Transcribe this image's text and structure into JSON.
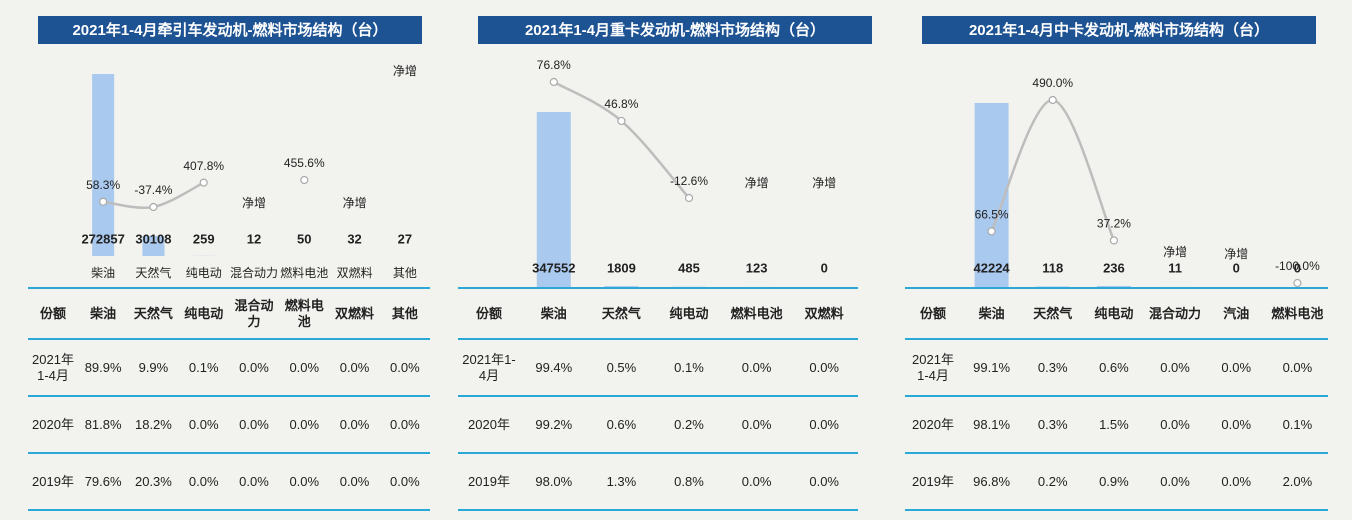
{
  "chart_data": [
    {
      "type": "bar",
      "title": "2021年1-4月牵引车发动机-燃料市场结构（台）",
      "categories": [
        "柴油",
        "天然气",
        "纯电动",
        "混合动力",
        "燃料电池",
        "双燃料",
        "其他"
      ],
      "series": [
        {
          "color": "#a9c9ef",
          "values": [
            272857,
            30108,
            259,
            12,
            50,
            32,
            27
          ]
        },
        {
          "type": "line",
          "color": "#bdbdbd",
          "values": [
            58.3,
            -37.4,
            407.8,
            null,
            455.6,
            null,
            null
          ],
          "value_labels": [
            "58.3%",
            "-37.4%",
            "407.8%",
            "净增",
            "455.6%",
            "净增",
            "净增"
          ]
        }
      ]
    },
    {
      "type": "bar",
      "title": "2021年1-4月重卡发动机-燃料市场结构（台）",
      "series": [
        {
          "color": "#a9c9ef",
          "values": [
            347552,
            1809,
            485,
            123,
            0
          ]
        },
        {
          "type": "line",
          "color": "#bdbdbd",
          "values": [
            76.8,
            46.8,
            -12.6,
            null,
            null
          ],
          "value_labels": [
            "76.8%",
            "46.8%",
            "-12.6%",
            "净增",
            "净增"
          ]
        }
      ]
    },
    {
      "type": "bar",
      "title": "2021年1-4月中卡发动机-燃料市场结构（台）",
      "series": [
        {
          "color": "#a9c9ef",
          "values": [
            42224,
            118,
            236,
            11,
            0,
            0
          ]
        },
        {
          "type": "line",
          "color": "#bdbdbd",
          "values": [
            66.5,
            490.0,
            37.2,
            null,
            null,
            -100.0
          ],
          "value_labels": [
            "66.5%",
            "490.0%",
            "37.2%",
            "净增",
            "净增",
            "-100.0%"
          ]
        }
      ]
    }
  ],
  "tables": [
    {
      "header": [
        "份额",
        "柴油",
        "天然气",
        "纯电动",
        "混合动力",
        "燃料电池",
        "双燃料",
        "其他"
      ],
      "rows": [
        [
          "2021年1-4月",
          "89.9%",
          "9.9%",
          "0.1%",
          "0.0%",
          "0.0%",
          "0.0%",
          "0.0%"
        ],
        [
          "2020年",
          "81.8%",
          "18.2%",
          "0.0%",
          "0.0%",
          "0.0%",
          "0.0%",
          "0.0%"
        ],
        [
          "2019年",
          "79.6%",
          "20.3%",
          "0.0%",
          "0.0%",
          "0.0%",
          "0.0%",
          "0.0%"
        ]
      ]
    },
    {
      "header": [
        "份额",
        "柴油",
        "天然气",
        "纯电动",
        "燃料电池",
        "双燃料"
      ],
      "rows": [
        [
          "2021年1-4月",
          "99.4%",
          "0.5%",
          "0.1%",
          "0.0%",
          "0.0%"
        ],
        [
          "2020年",
          "99.2%",
          "0.6%",
          "0.2%",
          "0.0%",
          "0.0%"
        ],
        [
          "2019年",
          "98.0%",
          "1.3%",
          "0.8%",
          "0.0%",
          "0.0%"
        ]
      ]
    },
    {
      "header": [
        "份额",
        "柴油",
        "天然气",
        "纯电动",
        "混合动力",
        "汽油",
        "燃料电池"
      ],
      "rows": [
        [
          "2021年1-4月",
          "99.1%",
          "0.3%",
          "0.6%",
          "0.0%",
          "0.0%",
          "0.0%"
        ],
        [
          "2020年",
          "98.1%",
          "0.3%",
          "1.5%",
          "0.0%",
          "0.0%",
          "0.1%"
        ],
        [
          "2019年",
          "96.8%",
          "0.2%",
          "0.9%",
          "0.0%",
          "0.0%",
          "2.0%"
        ]
      ]
    }
  ]
}
